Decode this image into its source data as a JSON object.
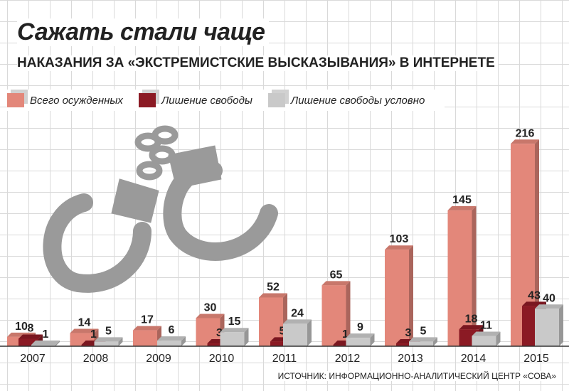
{
  "title": "Сажать стали чаще",
  "subtitle": "НАКАЗАНИЯ ЗА «ЭКСТРЕМИСТСКИЕ ВЫСКАЗЫВАНИЯ» В ИНТЕРНЕТЕ",
  "source": "ИСТОЧНИК: ИНФОРМАЦИОННО-АНАЛИТИЧЕСКИЙ ЦЕНТР «СОВА»",
  "decor_icon": "handcuffs-icon",
  "colors": {
    "total": "#e3877a",
    "prison": "#8b1a24",
    "suspended": "#c9c9c9",
    "grid": "#d9d9d9"
  },
  "chart_data": {
    "type": "bar",
    "categories": [
      "2007",
      "2008",
      "2009",
      "2010",
      "2011",
      "2012",
      "2013",
      "2014",
      "2015"
    ],
    "series": [
      {
        "name": "Всего осужденных",
        "values": [
          10,
          14,
          17,
          30,
          52,
          65,
          103,
          145,
          216
        ]
      },
      {
        "name": "Лишение свободы",
        "values": [
          8,
          1,
          null,
          3,
          5,
          1,
          3,
          18,
          43
        ]
      },
      {
        "name": "Лишение свободы условно",
        "values": [
          1,
          5,
          6,
          15,
          24,
          9,
          5,
          11,
          40
        ]
      }
    ],
    "ylim": [
      0,
      220
    ],
    "grid": true,
    "legend": "top-left"
  }
}
